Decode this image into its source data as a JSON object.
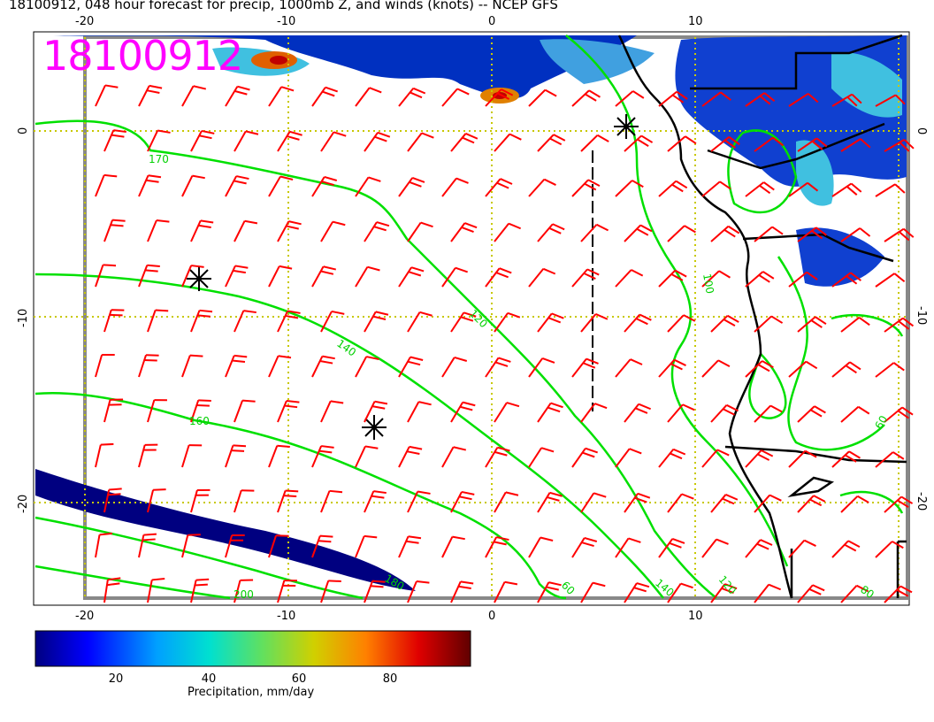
{
  "title": "18100912, 048 hour forecast for precip, 1000mb Z, and winds (knots) -- NCEP GFS",
  "stamp": "18100912",
  "axes": {
    "lon_ticks": [
      "-20",
      "-10",
      "0",
      "10"
    ],
    "lat_ticks": [
      "0",
      "-10",
      "-20"
    ]
  },
  "contour_labels": [
    "120",
    "140",
    "160",
    "170",
    "180",
    "200",
    "100",
    "120",
    "140",
    "160",
    "60",
    "80",
    "60"
  ],
  "colorbar": {
    "label": "Precipitation, mm/day",
    "ticks": [
      "20",
      "40",
      "60",
      "80"
    ],
    "colors": [
      "#000080",
      "#0000ff",
      "#00a0ff",
      "#00e0d0",
      "#60e060",
      "#d0d000",
      "#ff8000",
      "#e00000",
      "#600000"
    ]
  },
  "colors": {
    "contour": "#00e000",
    "wind_barb": "#ff0000",
    "grid": "#c8c800",
    "coast": "#000000"
  }
}
